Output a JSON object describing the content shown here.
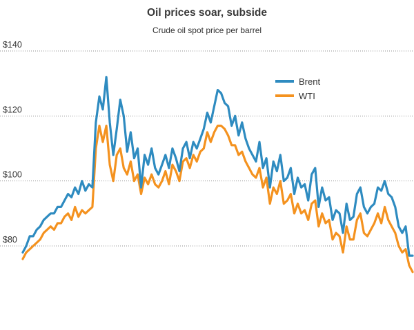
{
  "chart_data": {
    "type": "line",
    "title": "Oil prices soar, subside",
    "subtitle": "Crude oil spot price per barrel",
    "xlabel": "",
    "ylabel": "",
    "ylim": [
      62,
      140
    ],
    "yticks": [
      {
        "value": 140,
        "label": "$140"
      },
      {
        "value": 120,
        "label": "$120"
      },
      {
        "value": 100,
        "label": "$100"
      },
      {
        "value": 80,
        "label": "$80"
      }
    ],
    "grid": "horizontal-dotted",
    "legend_position": "top-right",
    "x": [
      0,
      1,
      2,
      3,
      4,
      5,
      6,
      7,
      8,
      9,
      10,
      11,
      12,
      13,
      14,
      15,
      16,
      17,
      18,
      19,
      20,
      21,
      22,
      23,
      24,
      25,
      26,
      27,
      28,
      29,
      30,
      31,
      32,
      33,
      34,
      35,
      36,
      37,
      38,
      39,
      40,
      41,
      42,
      43,
      44,
      45,
      46,
      47,
      48,
      49,
      50,
      51,
      52,
      53,
      54,
      55,
      56,
      57,
      58,
      59,
      60,
      61,
      62,
      63,
      64,
      65,
      66,
      67,
      68,
      69,
      70,
      71,
      72,
      73,
      74,
      75,
      76,
      77,
      78,
      79,
      80,
      81,
      82,
      83,
      84,
      85,
      86,
      87,
      88,
      89,
      90,
      91,
      92,
      93,
      94,
      95,
      96,
      97,
      98,
      99,
      100,
      101,
      102,
      103,
      104,
      105,
      106,
      107,
      108,
      109,
      110,
      111,
      112
    ],
    "series": [
      {
        "name": "Brent",
        "color": "#2e8bc0",
        "values": [
          78,
          80,
          83,
          83,
          85,
          86,
          88,
          89,
          90,
          90,
          92,
          92,
          94,
          96,
          95,
          98,
          96,
          100,
          97,
          99,
          98,
          118,
          126,
          122,
          132,
          118,
          108,
          116,
          125,
          120,
          109,
          115,
          107,
          110,
          98,
          108,
          105,
          110,
          104,
          102,
          105,
          108,
          104,
          110,
          107,
          103,
          110,
          112,
          107,
          112,
          110,
          113,
          116,
          121,
          118,
          123,
          128,
          127,
          124,
          123,
          117,
          120,
          114,
          118,
          113,
          110,
          108,
          106,
          112,
          104,
          107,
          98,
          106,
          103,
          108,
          100,
          101,
          104,
          96,
          101,
          98,
          99,
          94,
          102,
          104,
          92,
          98,
          94,
          95,
          88,
          91,
          90,
          84,
          93,
          88,
          89,
          96,
          98,
          92,
          90,
          92,
          93,
          98,
          97,
          100,
          96,
          95,
          92,
          86,
          84,
          86,
          77,
          77
        ]
      },
      {
        "name": "WTI",
        "color": "#f4921f",
        "values": [
          76,
          78,
          79,
          80,
          81,
          82,
          84,
          85,
          86,
          85,
          87,
          87,
          89,
          90,
          88,
          92,
          89,
          91,
          90,
          91,
          92,
          110,
          117,
          112,
          117,
          105,
          100,
          108,
          110,
          104,
          102,
          106,
          100,
          102,
          96,
          101,
          99,
          102,
          99,
          98,
          100,
          103,
          99,
          105,
          103,
          100,
          106,
          107,
          104,
          108,
          106,
          109,
          110,
          115,
          112,
          115,
          117,
          117,
          116,
          114,
          111,
          111,
          108,
          109,
          106,
          104,
          102,
          101,
          104,
          98,
          101,
          93,
          98,
          96,
          100,
          93,
          94,
          96,
          90,
          93,
          90,
          91,
          88,
          93,
          94,
          86,
          90,
          87,
          88,
          82,
          84,
          83,
          78,
          86,
          82,
          82,
          88,
          90,
          84,
          83,
          85,
          87,
          90,
          87,
          92,
          88,
          86,
          84,
          80,
          78,
          79,
          74,
          72
        ]
      }
    ]
  }
}
